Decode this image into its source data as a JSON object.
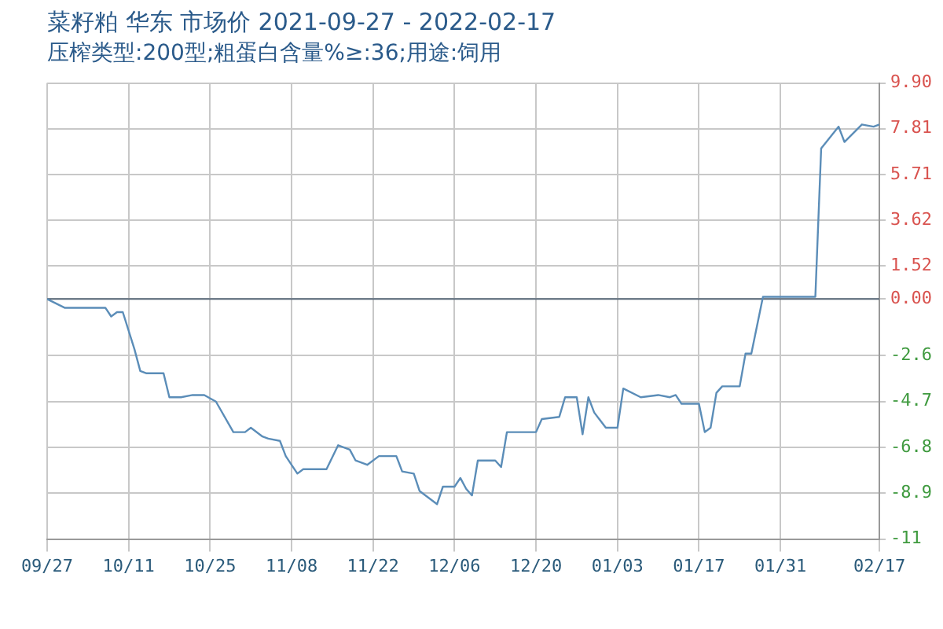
{
  "chart_data": {
    "type": "line",
    "title": "菜籽粕 华东 市场价 2021-09-27 - 2022-02-17",
    "subtitle": "压榨类型:200型;粗蛋白含量%≥:36;用途:饲用",
    "xlim": [
      "2021-09-27",
      "2022-02-17"
    ],
    "xticks": [
      {
        "value": "2021-09-27",
        "label": "09/27"
      },
      {
        "value": "2021-10-11",
        "label": "10/11"
      },
      {
        "value": "2021-10-25",
        "label": "10/25"
      },
      {
        "value": "2021-11-08",
        "label": "11/08"
      },
      {
        "value": "2021-11-22",
        "label": "11/22"
      },
      {
        "value": "2021-12-06",
        "label": "12/06"
      },
      {
        "value": "2021-12-20",
        "label": "12/20"
      },
      {
        "value": "2022-01-03",
        "label": "01/03"
      },
      {
        "value": "2022-01-17",
        "label": "01/17"
      },
      {
        "value": "2022-01-31",
        "label": "01/31"
      },
      {
        "value": "2022-02-17",
        "label": "02/17"
      }
    ],
    "y2lim": [
      -11,
      9.9
    ],
    "y2ticks": [
      {
        "value": 9.9,
        "label": "9.90"
      },
      7.81,
      5.71,
      3.62,
      1.52,
      {
        "value": 0,
        "label": "0.00"
      },
      -2.6,
      -4.7,
      -6.8,
      -8.9,
      -11
    ],
    "x": [
      "2021-09-27",
      "2021-09-30",
      "2021-10-07",
      "2021-10-08",
      "2021-10-09",
      "2021-10-10",
      "2021-10-12",
      "2021-10-13",
      "2021-10-14",
      "2021-10-17",
      "2021-10-18",
      "2021-10-20",
      "2021-10-22",
      "2021-10-24",
      "2021-10-26",
      "2021-10-29",
      "2021-10-31",
      "2021-11-01",
      "2021-11-03",
      "2021-11-04",
      "2021-11-06",
      "2021-11-07",
      "2021-11-09",
      "2021-11-10",
      "2021-11-14",
      "2021-11-16",
      "2021-11-18",
      "2021-11-19",
      "2021-11-21",
      "2021-11-23",
      "2021-11-26",
      "2021-11-27",
      "2021-11-29",
      "2021-11-30",
      "2021-12-03",
      "2021-12-04",
      "2021-12-06",
      "2021-12-07",
      "2021-12-08",
      "2021-12-09",
      "2021-12-10",
      "2021-12-13",
      "2021-12-14",
      "2021-12-15",
      "2021-12-20",
      "2021-12-21",
      "2021-12-24",
      "2021-12-25",
      "2021-12-27",
      "2021-12-28",
      "2021-12-29",
      "2021-12-30",
      "2022-01-01",
      "2022-01-03",
      "2022-01-04",
      "2022-01-07",
      "2022-01-10",
      "2022-01-12",
      "2022-01-13",
      "2022-01-14",
      "2022-01-17",
      "2022-01-18",
      "2022-01-19",
      "2022-01-20",
      "2022-01-21",
      "2022-01-24",
      "2022-01-25",
      "2022-01-26",
      "2022-01-28",
      "2022-02-06",
      "2022-02-07",
      "2022-02-10",
      "2022-02-11",
      "2022-02-14",
      "2022-02-16",
      "2022-02-17"
    ],
    "series": [
      {
        "color": "#5b8db8",
        "axis": "y2",
        "values": [
          0,
          -0.4,
          -0.4,
          -0.8,
          -0.6,
          -0.6,
          -2.3,
          -3.3,
          -3.4,
          -3.4,
          -4.5,
          -4.5,
          -4.4,
          -4.4,
          -4.7,
          -6.1,
          -6.1,
          -5.9,
          -6.3,
          -6.4,
          -6.5,
          -7.2,
          -8.0,
          -7.8,
          -7.8,
          -6.7,
          -6.9,
          -7.4,
          -7.6,
          -7.2,
          -7.2,
          -7.9,
          -8.0,
          -8.8,
          -9.4,
          -8.6,
          -8.6,
          -8.2,
          -8.7,
          -9.0,
          -7.4,
          -7.4,
          -7.7,
          -6.1,
          -6.1,
          -5.5,
          -5.4,
          -4.5,
          -4.5,
          -6.2,
          -4.5,
          -5.2,
          -5.9,
          -5.9,
          -4.1,
          -4.5,
          -4.4,
          -4.5,
          -4.4,
          -4.8,
          -4.8,
          -6.1,
          -5.9,
          -4.3,
          -4.0,
          -4.0,
          -2.5,
          -2.5,
          0.1,
          0.1,
          6.9,
          7.9,
          7.2,
          8.0,
          7.9,
          8.0
        ]
      }
    ],
    "ref_lines": [
      {
        "axis": "y2",
        "value": 0,
        "color": "#5a6a7a"
      }
    ],
    "grid": true,
    "legend": false,
    "marker": "none",
    "line_style": "solid"
  }
}
